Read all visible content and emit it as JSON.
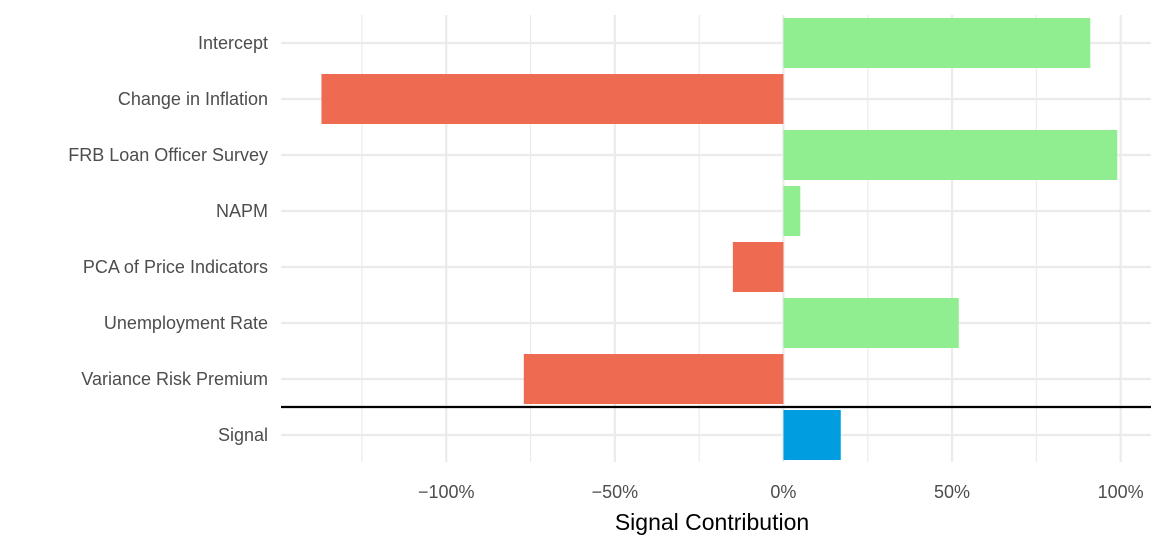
{
  "chart_data": {
    "type": "bar",
    "orientation": "horizontal",
    "categories": [
      "Intercept",
      "Change in Inflation",
      "FRB Loan Officer Survey",
      "NAPM",
      "PCA of Price Indicators",
      "Unemployment Rate",
      "Variance Risk Premium",
      "Signal"
    ],
    "values": [
      91,
      -137,
      99,
      5,
      -15,
      52,
      -77,
      17
    ],
    "xlabel": "Signal Contribution",
    "ylabel": "",
    "xlim": [
      -149,
      109
    ],
    "x_ticks": [
      -100,
      -50,
      0,
      50,
      100
    ],
    "x_tick_labels": [
      "−100%",
      "−50%",
      "0%",
      "50%",
      "100%"
    ],
    "grid": true,
    "legend": "none",
    "separator_line": "between Variance Risk Premium and Signal",
    "colors": {
      "positive": "#90ee90",
      "negative": "#ee6a50",
      "signal": "#009ee0",
      "grid": "#ebebeb",
      "separator": "#000000"
    }
  }
}
